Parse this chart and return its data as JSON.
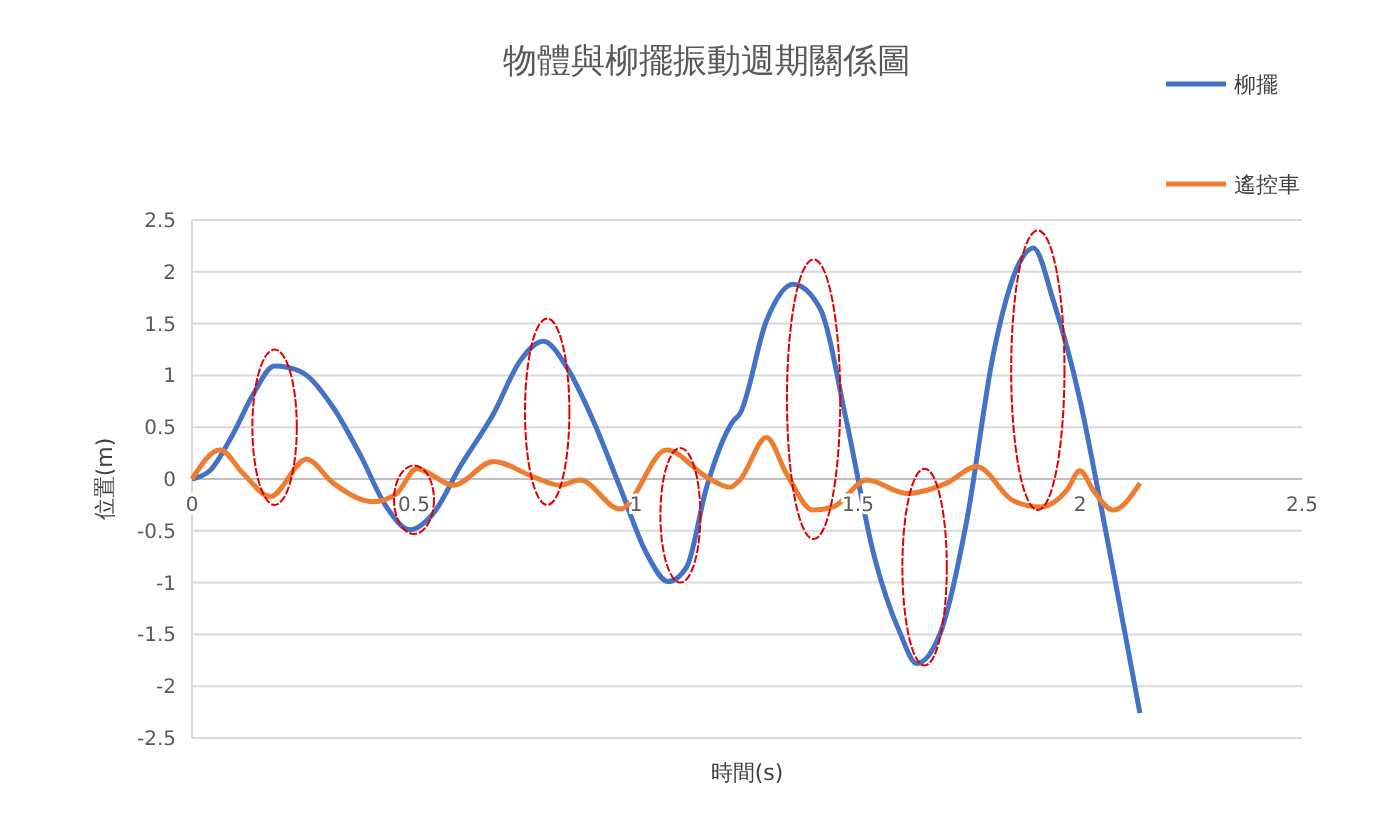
{
  "chart_data": {
    "type": "line",
    "title": "物體與柳擺振動週期關係圖",
    "xlabel": "時間(s)",
    "ylabel": "位置(m)",
    "xlim": [
      0,
      2.5
    ],
    "xticks": [
      0,
      0.5,
      1,
      1.5,
      2,
      2.5
    ],
    "ylim": [
      -2.5,
      2.5
    ],
    "yticks": [
      -2.5,
      -2,
      -1.5,
      -1,
      -0.5,
      0,
      0.5,
      1,
      1.5,
      2,
      2.5
    ],
    "grid": "y",
    "legend": "right",
    "series": [
      {
        "name": "柳擺",
        "color": "#4472c4",
        "x": [
          0,
          0.04,
          0.093,
          0.138,
          0.186,
          0.243,
          0.318,
          0.378,
          0.438,
          0.491,
          0.544,
          0.604,
          0.679,
          0.739,
          0.791,
          0.844,
          0.904,
          0.964,
          1.024,
          1.072,
          1.114,
          1.159,
          1.219,
          1.234,
          1.294,
          1.354,
          1.414,
          1.474,
          1.535,
          1.595,
          1.632,
          1.685,
          1.745,
          1.805,
          1.865,
          1.895,
          1.94,
          2,
          2.045,
          2.09,
          2.135
        ],
        "values": [
          0,
          0.08,
          0.44,
          0.82,
          1.09,
          1.04,
          0.69,
          0.24,
          -0.27,
          -0.49,
          -0.33,
          0.12,
          0.63,
          1.14,
          1.33,
          1.08,
          0.56,
          -0.08,
          -0.72,
          -0.99,
          -0.85,
          -0.08,
          0.56,
          0.63,
          1.53,
          1.88,
          1.65,
          0.56,
          -0.72,
          -1.49,
          -1.78,
          -1.49,
          -0.4,
          1.21,
          2.1,
          2.23,
          1.72,
          0.76,
          -0.21,
          -1.23,
          -2.26
        ]
      },
      {
        "name": "遙控車",
        "color": "#ed7d31",
        "x": [
          0,
          0.063,
          0.116,
          0.176,
          0.258,
          0.318,
          0.408,
          0.461,
          0.506,
          0.589,
          0.679,
          0.769,
          0.829,
          0.874,
          0.964,
          1.069,
          1.159,
          1.212,
          1.234,
          1.294,
          1.339,
          1.399,
          1.444,
          1.52,
          1.61,
          1.7,
          1.767,
          1.85,
          1.91,
          1.97,
          2,
          2.03,
          2.075,
          2.135
        ],
        "values": [
          0,
          0.28,
          0.05,
          -0.17,
          0.19,
          -0.04,
          -0.22,
          -0.14,
          0.1,
          -0.06,
          0.17,
          0.02,
          -0.06,
          -0.01,
          -0.29,
          0.28,
          0.02,
          -0.08,
          -0.01,
          0.4,
          0.05,
          -0.3,
          -0.27,
          -0.01,
          -0.14,
          -0.04,
          0.12,
          -0.21,
          -0.27,
          -0.11,
          0.08,
          -0.11,
          -0.3,
          -0.04
        ]
      }
    ]
  }
}
